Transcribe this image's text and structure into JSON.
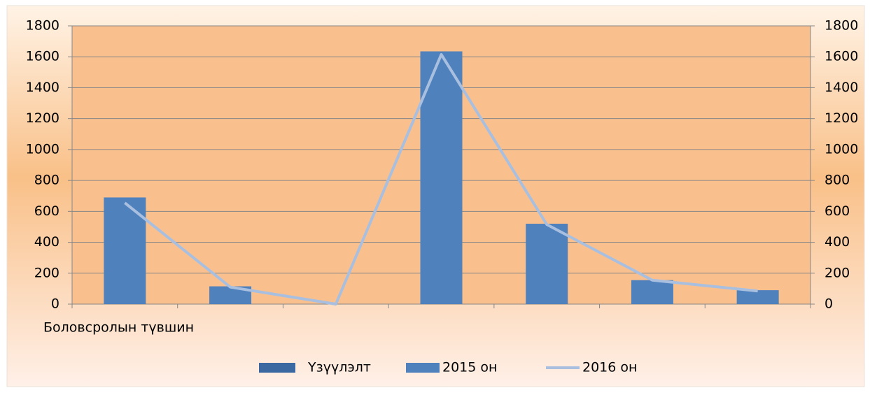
{
  "chart_data": {
    "type": "bar",
    "x_label": "Боловсролын түвшин",
    "categories": [
      null,
      null,
      null,
      null,
      null,
      null,
      null
    ],
    "series": [
      {
        "name": "Үзүүлэлт",
        "color": "#3b68a0",
        "type": "bar",
        "values": [
          null,
          null,
          null,
          null,
          null,
          null,
          null
        ]
      },
      {
        "name": "2015 он",
        "color": "#4f81bd",
        "type": "bar",
        "values": [
          690,
          115,
          0,
          1635,
          520,
          155,
          90
        ]
      },
      {
        "name": "2016 он",
        "color": "#a9bfe0",
        "type": "line",
        "axis": "y2",
        "values": [
          655,
          110,
          0,
          1615,
          515,
          155,
          85
        ]
      }
    ],
    "ylim": [
      0,
      1800
    ],
    "yticks": [
      0,
      200,
      400,
      600,
      800,
      1000,
      1200,
      1400,
      1600,
      1800
    ],
    "y2lim": [
      0,
      1800
    ],
    "y2ticks": [
      0,
      200,
      400,
      600,
      800,
      1000,
      1200,
      1400,
      1600,
      1800
    ],
    "grid": true,
    "legend": "bottom"
  }
}
